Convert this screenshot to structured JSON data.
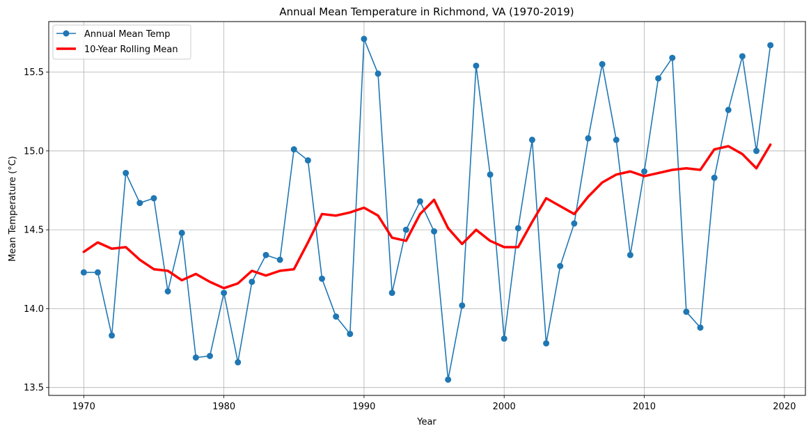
{
  "chart_data": {
    "type": "line",
    "title": "Annual Mean Temperature in Richmond, VA (1970-2019)",
    "xlabel": "Year",
    "ylabel": "Mean Temperature (°C)",
    "xlim": [
      1967.5,
      2021.5
    ],
    "ylim": [
      13.45,
      15.82
    ],
    "xticks": [
      1970,
      1980,
      1990,
      2000,
      2010,
      2020
    ],
    "yticks": [
      13.5,
      14.0,
      14.5,
      15.0,
      15.5
    ],
    "xtick_labels": [
      "1970",
      "1980",
      "1990",
      "2000",
      "2010",
      "2020"
    ],
    "ytick_labels": [
      "13.5",
      "14.0",
      "14.5",
      "15.0",
      "15.5"
    ],
    "grid": true,
    "legend_position": "upper-left",
    "x": [
      1970,
      1971,
      1972,
      1973,
      1974,
      1975,
      1976,
      1977,
      1978,
      1979,
      1980,
      1981,
      1982,
      1983,
      1984,
      1985,
      1986,
      1987,
      1988,
      1989,
      1990,
      1991,
      1992,
      1993,
      1994,
      1995,
      1996,
      1997,
      1998,
      1999,
      2000,
      2001,
      2002,
      2003,
      2004,
      2005,
      2006,
      2007,
      2008,
      2009,
      2010,
      2011,
      2012,
      2013,
      2014,
      2015,
      2016,
      2017,
      2018,
      2019
    ],
    "series": [
      {
        "name": "Annual Mean Temp",
        "color": "#1f77b4",
        "marker": "circle",
        "values": [
          14.23,
          14.23,
          13.83,
          14.86,
          14.67,
          14.7,
          14.11,
          14.48,
          13.69,
          13.7,
          14.1,
          13.66,
          14.17,
          14.34,
          14.31,
          15.01,
          14.94,
          14.19,
          13.95,
          13.84,
          15.71,
          15.49,
          14.1,
          14.5,
          14.68,
          14.49,
          13.55,
          14.02,
          15.54,
          14.85,
          13.81,
          14.51,
          15.07,
          13.78,
          14.27,
          14.54,
          15.08,
          15.55,
          15.07,
          14.34,
          14.87,
          15.46,
          15.59,
          13.98,
          13.88,
          14.83,
          15.26,
          15.6,
          15.0,
          15.67
        ]
      },
      {
        "name": "10-Year Rolling Mean",
        "color": "#ff0000",
        "marker": "none",
        "values": [
          14.36,
          14.42,
          14.38,
          14.39,
          14.31,
          14.25,
          14.24,
          14.18,
          14.22,
          14.17,
          14.13,
          14.16,
          14.24,
          14.21,
          14.24,
          14.25,
          14.42,
          14.6,
          14.59,
          14.61,
          14.64,
          14.59,
          14.45,
          14.43,
          14.6,
          14.69,
          14.51,
          14.41,
          14.5,
          14.43,
          14.39,
          14.39,
          14.55,
          14.7,
          14.65,
          14.6,
          14.71,
          14.8,
          14.85,
          14.87,
          14.84,
          14.86,
          14.88,
          14.89,
          14.88,
          15.01,
          15.03,
          14.98,
          14.89,
          15.04
        ]
      }
    ]
  }
}
